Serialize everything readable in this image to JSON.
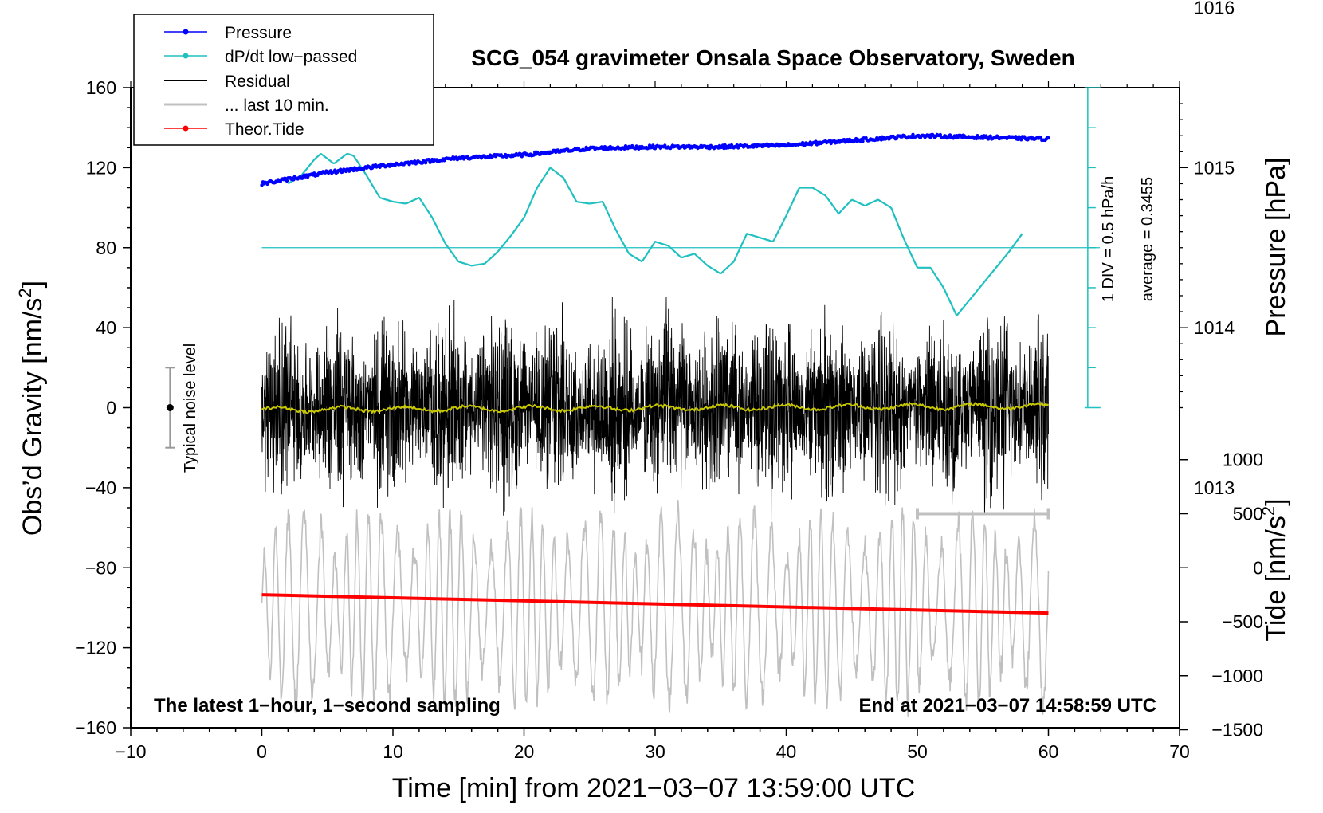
{
  "chart_data": {
    "type": "line",
    "title": "SCG_054 gravimeter Onsala Space Observatory, Sweden",
    "xlabel": "Time [min] from 2021−03−07 13:59:00 UTC",
    "ylabel_left": "Obs’d Gravity [nm/s",
    "ylabel_left_sup": "2",
    "ylabel_left_tail": "]",
    "ylabel_pressure": "Pressure [hPa]",
    "ylabel_tide": "Tide [nm/s",
    "ylabel_tide_sup": "2",
    "ylabel_tide_tail": "]",
    "xlim": [
      -10,
      70
    ],
    "ylim": [
      -160,
      160
    ],
    "x_ticks": [
      "−10",
      "0",
      "10",
      "20",
      "30",
      "40",
      "50",
      "60",
      "70"
    ],
    "x_tick_values": [
      -10,
      0,
      10,
      20,
      30,
      40,
      50,
      60,
      70
    ],
    "y_ticks": [
      "160",
      "120",
      "80",
      "40",
      "0",
      "−40",
      "−80",
      "−120",
      "−160"
    ],
    "y_tick_values": [
      160,
      120,
      80,
      40,
      0,
      -40,
      -80,
      -120,
      -160
    ],
    "pressure_ticks": [
      "1016",
      "1015",
      "1014",
      "1013"
    ],
    "pressure_tick_values": [
      1016,
      1015,
      1014,
      1013
    ],
    "pressure_scale": {
      "value_at_gravity_80": 1014.5,
      "hpa_per_40_nm": 0.5
    },
    "tide_ticks": [
      "1000",
      "500",
      "0",
      "−500",
      "−1000",
      "−1500"
    ],
    "tide_tick_values": [
      1000,
      500,
      0,
      -500,
      -1000,
      -1500
    ],
    "tide_scale": {
      "gravity_at_tide_0": -80,
      "nm_per_tide_500": 27
    },
    "legend": [
      {
        "label": "Pressure",
        "color": "#0000ff",
        "style": "line-dot"
      },
      {
        "label": "dP/dt low−passed",
        "color": "#00c0c0",
        "style": "line-dot"
      },
      {
        "label": "Residual",
        "color": "#000000",
        "style": "line"
      },
      {
        "label": "... last 10 min.",
        "color": "#c0c0c0",
        "style": "line"
      },
      {
        "label": "Theor.Tide",
        "color": "#ff0000",
        "style": "line-dot"
      }
    ],
    "colors": {
      "pressure": "#0000ff",
      "dpdt": "#20c0c0",
      "residual": "#000000",
      "last10": "#c0c0c0",
      "tide": "#ff0000",
      "mean_residual": "#c8c800"
    },
    "series": [
      {
        "name": "Pressure",
        "unit": "hPa",
        "x": [
          0,
          5,
          10,
          15,
          20,
          25,
          30,
          35,
          40,
          45,
          50,
          55,
          60
        ],
        "values": [
          1014.9,
          1014.97,
          1015.02,
          1015.06,
          1015.08,
          1015.12,
          1015.13,
          1015.13,
          1015.14,
          1015.17,
          1015.2,
          1015.19,
          1015.18
        ]
      },
      {
        "name": "dP/dt low−passed",
        "unit": "nm/s2 plot scale",
        "x": [
          2,
          3,
          4,
          4.5,
          5.5,
          6.5,
          7,
          8,
          9,
          10,
          11,
          12,
          13,
          14,
          15,
          16,
          17,
          18,
          19,
          20,
          21,
          22,
          23,
          24,
          25,
          26,
          27,
          28,
          29,
          30,
          31,
          32,
          33,
          34,
          35,
          36,
          37,
          38,
          39,
          40,
          41,
          42,
          43,
          44,
          45,
          46,
          47,
          48,
          49,
          50,
          51,
          52,
          53,
          54,
          55,
          56,
          57,
          58
        ],
        "values": [
          112,
          116,
          124,
          127,
          122,
          127,
          126,
          116,
          105,
          103,
          102,
          105,
          95,
          82,
          73,
          71,
          72,
          78,
          86,
          95,
          110,
          120,
          115,
          103,
          102,
          103,
          89,
          77,
          73,
          83,
          81,
          75,
          77,
          71,
          67,
          73,
          87,
          85,
          83,
          96,
          110,
          110,
          106,
          97,
          104,
          101,
          104,
          100,
          84,
          70,
          70,
          60,
          46,
          54,
          62,
          70,
          78,
          87
        ]
      },
      {
        "name": "Residual",
        "unit": "nm/s2",
        "x_range": [
          0,
          60
        ],
        "amplitude_range": [
          -70,
          70
        ]
      },
      {
        "name": "... last 10 min.",
        "unit": "nm/s2",
        "x_range": [
          0,
          60
        ],
        "center": -100,
        "amplitude_range": [
          -60,
          40
        ]
      },
      {
        "name": "Theor.Tide",
        "unit": "nm/s2",
        "x": [
          0,
          60
        ],
        "tide_values": [
          -250,
          -420
        ]
      }
    ],
    "noise_bar": {
      "label": "Typical noise level",
      "x": -7,
      "low": -20,
      "high": 20
    },
    "dpdt_reference_line": 80,
    "dpdt_scale_note": "1 DIV = 0.5 hPa/h",
    "average_note": "average = 0.3455",
    "last10_bracket": {
      "x_start": 50,
      "x_end": 60,
      "y": -53
    },
    "note_left": "The latest 1−hour, 1−second sampling",
    "note_right": "End at 2021−03−07 14:58:59 UTC"
  }
}
